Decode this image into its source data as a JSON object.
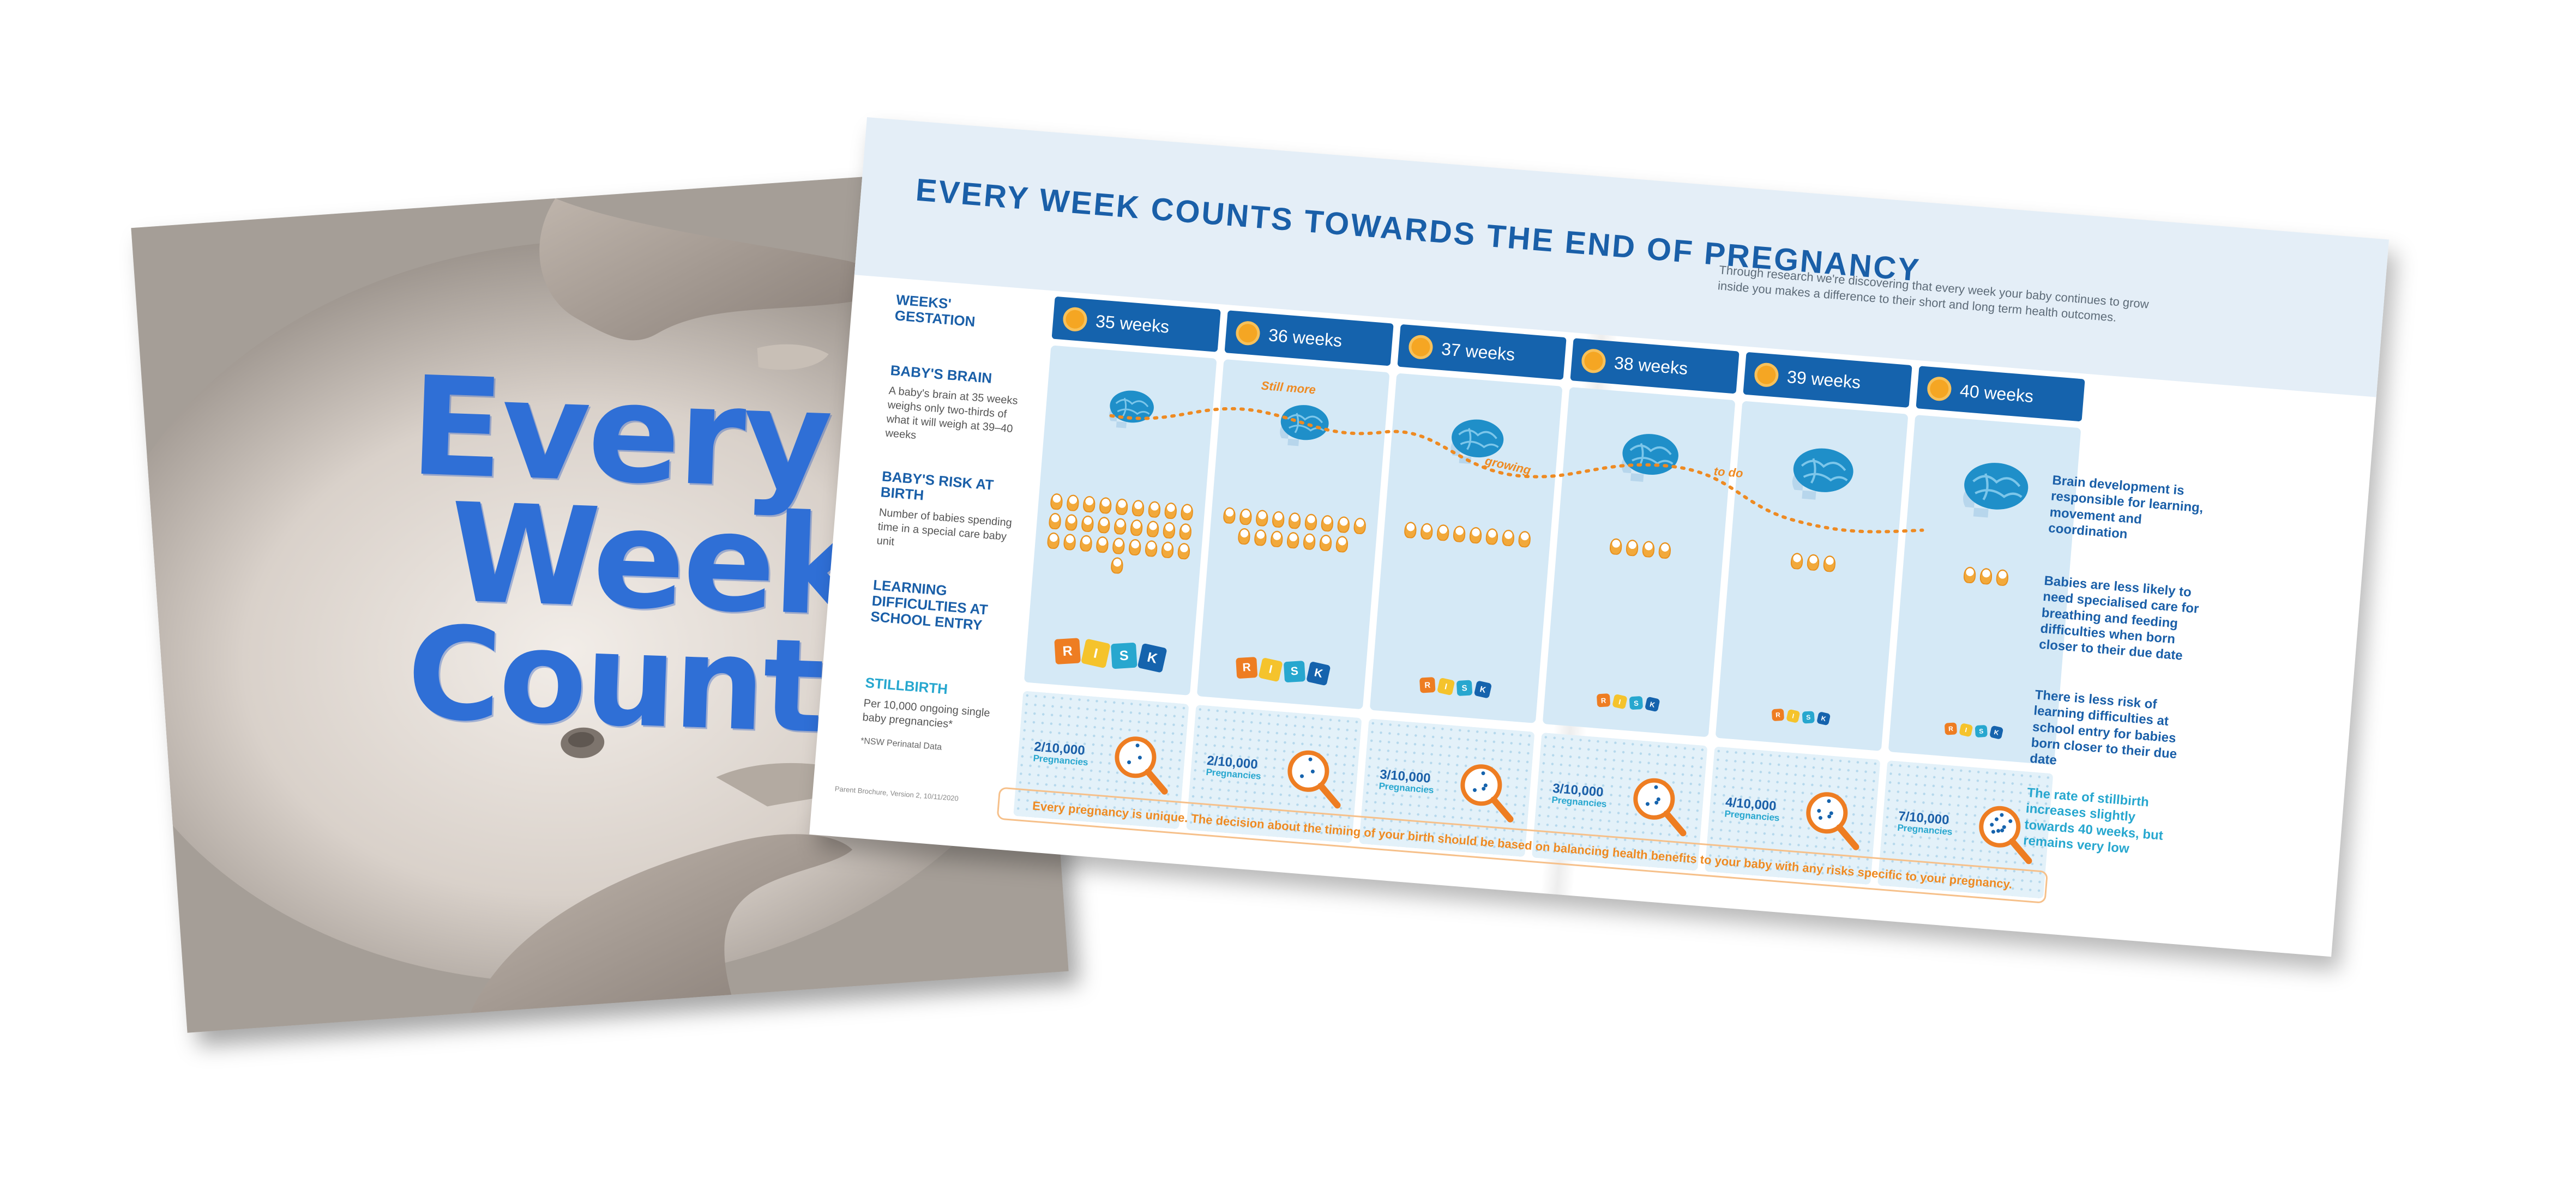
{
  "cover": {
    "line1": "Every",
    "line2": "Week",
    "line3": "Counts"
  },
  "brochure": {
    "title": "EVERY WEEK COUNTS TOWARDS THE END OF PREGNANCY",
    "intro": "Through research we're discovering that every week your baby continues to grow inside you makes a difference to their short and long term health outcomes.",
    "labels": {
      "gestation": "WEEKS' GESTATION",
      "brain_heading": "BABY'S BRAIN",
      "brain_desc": "A baby's brain at 35 weeks weighs only two-thirds of what it will weigh at 39–40 weeks",
      "risk_heading": "BABY'S RISK AT BIRTH",
      "risk_desc": "Number of babies spending time in a special care baby unit",
      "learning_heading": "LEARNING DIFFICULTIES AT SCHOOL ENTRY",
      "stillbirth_heading": "STILLBIRTH",
      "stillbirth_desc": "Per 10,000 ongoing single baby pregnancies*",
      "source_note": "*NSW Perinatal Data"
    },
    "curve_words": [
      "Still more",
      "growing",
      "to do"
    ],
    "weeks": [
      {
        "label": "35 weeks",
        "babies": 28,
        "risk_size": 46,
        "stillbirth": "2/10,000",
        "dots": 3
      },
      {
        "label": "36 weeks",
        "babies": 16,
        "risk_size": 38,
        "stillbirth": "2/10,000",
        "dots": 3
      },
      {
        "label": "37 weeks",
        "babies": 8,
        "risk_size": 28,
        "stillbirth": "3/10,000",
        "dots": 4
      },
      {
        "label": "38 weeks",
        "babies": 4,
        "risk_size": 24,
        "stillbirth": "3/10,000",
        "dots": 4
      },
      {
        "label": "39 weeks",
        "babies": 3,
        "risk_size": 22,
        "stillbirth": "4/10,000",
        "dots": 5
      },
      {
        "label": "40 weeks",
        "babies": 3,
        "risk_size": 22,
        "stillbirth": "7/10,000",
        "dots": 8
      }
    ],
    "pregnancies_label": "Pregnancies",
    "risk_letters": [
      "R",
      "I",
      "S",
      "K"
    ],
    "risk_colors": [
      "#ee7d22",
      "#f5c32c",
      "#27a7cf",
      "#1563ad"
    ],
    "notes": [
      "Brain development is responsible for learning, movement and coordination",
      "Babies are less likely to need specialised care for breathing and feeding difficulties when born closer to their due date",
      "There is less risk of learning difficulties at school entry for babies born closer to their due date",
      "The rate of stillbirth increases slightly towards 40 weeks, but remains very low"
    ],
    "footer": "Every pregnancy is unique. The decision about the timing of your birth should be based   on balancing health benefits to your baby with any risks specific to your pregnancy.",
    "version": "Parent Brochure, Version 2, 10/11/2020"
  }
}
